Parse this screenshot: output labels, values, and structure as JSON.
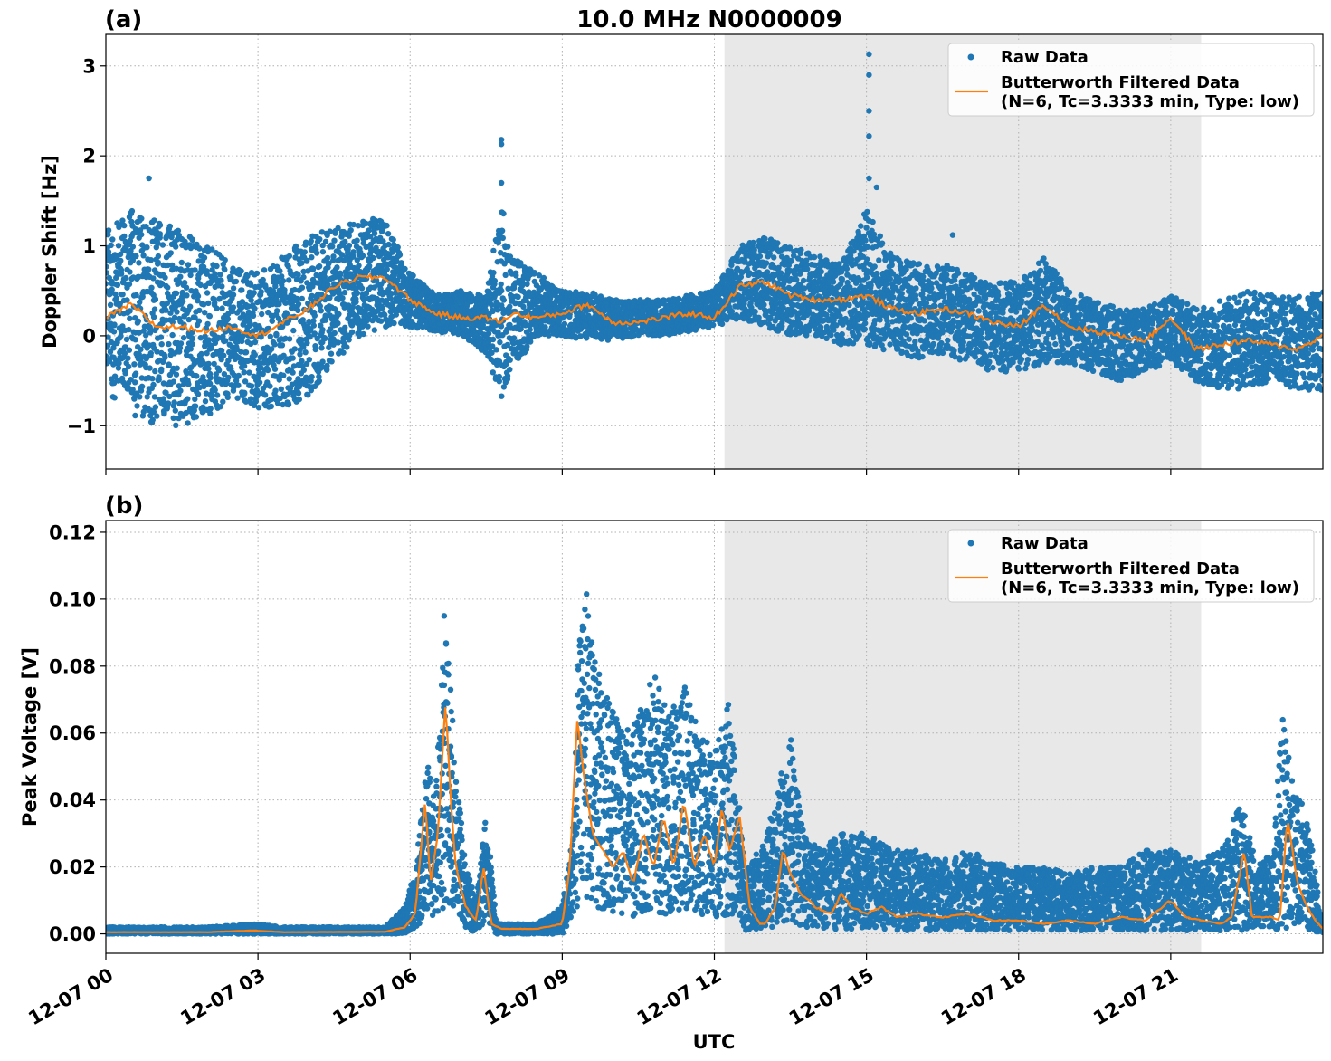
{
  "figure": {
    "title": "10.0 MHz N0000009",
    "xlabel": "UTC",
    "x_tick_labels": [
      "12-07 00",
      "12-07 03",
      "12-07 06",
      "12-07 09",
      "12-07 12",
      "12-07 15",
      "12-07 18",
      "12-07 21"
    ],
    "shaded_region_hours": [
      12.2,
      21.6
    ],
    "shade_color": "#e8e8e8",
    "raw_color": "#1f77b4",
    "filtered_color": "#ff7f0e",
    "legend": {
      "raw": "Raw Data",
      "filtered_line1": "Butterworth Filtered Data",
      "filtered_line2": "(N=6, Tc=3.3333 min, Type: low)"
    }
  },
  "chart_data": [
    {
      "panel_label": "(a)",
      "type": "scatter+line",
      "ylabel": "Doppler Shift [Hz]",
      "xlim_hours": [
        0,
        24
      ],
      "ylim": [
        -1.48,
        3.35
      ],
      "yticks": [
        -1,
        0,
        1,
        2,
        3
      ],
      "ytick_labels": [
        "−1",
        "0",
        "1",
        "2",
        "3"
      ],
      "grid": true,
      "legend_position": "top-right",
      "series": [
        {
          "name": "Raw Data",
          "kind": "scatter",
          "envelope_hours": [
            0,
            0.5,
            1,
            1.5,
            2,
            2.5,
            3,
            3.5,
            4,
            4.5,
            5,
            5.5,
            6,
            6.5,
            7,
            7.5,
            7.8,
            8,
            8.5,
            9,
            9.5,
            10,
            10.5,
            11,
            11.5,
            12,
            12.5,
            13,
            13.5,
            14,
            14.5,
            15,
            15.5,
            16,
            16.5,
            17,
            17.5,
            18,
            18.5,
            19,
            19.5,
            20,
            20.5,
            21,
            21.5,
            22,
            22.5,
            23,
            23.5,
            24
          ],
          "envelope_upper": [
            1.2,
            1.4,
            1.3,
            1.2,
            1.0,
            0.8,
            0.7,
            0.9,
            1.1,
            1.2,
            1.3,
            1.3,
            0.7,
            0.45,
            0.5,
            0.45,
            1.5,
            0.9,
            0.7,
            0.5,
            0.5,
            0.4,
            0.4,
            0.4,
            0.45,
            0.5,
            1.0,
            1.1,
            1.0,
            0.9,
            0.8,
            1.4,
            0.9,
            0.8,
            0.8,
            0.7,
            0.6,
            0.6,
            0.9,
            0.5,
            0.4,
            0.3,
            0.3,
            0.45,
            0.3,
            0.4,
            0.5,
            0.45,
            0.45,
            0.5
          ],
          "envelope_lower": [
            -0.6,
            -0.9,
            -1.0,
            -1.0,
            -0.9,
            -0.7,
            -0.8,
            -0.8,
            -0.7,
            -0.3,
            0.0,
            0.1,
            0.1,
            0.05,
            0.0,
            -0.2,
            -0.7,
            -0.4,
            0.0,
            0.0,
            -0.05,
            -0.05,
            0.0,
            0.0,
            0.05,
            0.1,
            0.2,
            0.1,
            0.0,
            0.0,
            -0.1,
            -0.1,
            -0.2,
            -0.25,
            -0.2,
            -0.3,
            -0.4,
            -0.4,
            -0.3,
            -0.3,
            -0.4,
            -0.5,
            -0.4,
            -0.3,
            -0.5,
            -0.6,
            -0.6,
            -0.5,
            -0.6,
            -0.6
          ],
          "outliers": [
            [
              15.05,
              3.13
            ],
            [
              15.05,
              2.9
            ],
            [
              15.05,
              2.5
            ],
            [
              15.05,
              2.22
            ],
            [
              7.8,
              2.18
            ],
            [
              7.8,
              2.13
            ],
            [
              7.8,
              1.7
            ],
            [
              0.85,
              1.75
            ],
            [
              15.05,
              1.75
            ],
            [
              15.2,
              1.65
            ],
            [
              16.7,
              1.12
            ]
          ]
        },
        {
          "name": "Butterworth Filtered Data",
          "kind": "line",
          "x_hours": [
            0,
            0.5,
            1,
            1.5,
            2,
            2.5,
            3,
            3.5,
            4,
            4.5,
            5,
            5.5,
            6,
            6.5,
            7,
            7.5,
            7.8,
            8,
            8.5,
            9,
            9.5,
            10,
            10.5,
            11,
            11.5,
            12,
            12.5,
            13,
            13.5,
            14,
            14.5,
            15,
            15.5,
            16,
            16.5,
            17,
            17.5,
            18,
            18.5,
            19,
            19.5,
            20,
            20.5,
            21,
            21.5,
            22,
            22.5,
            23,
            23.5,
            24
          ],
          "y": [
            0.2,
            0.35,
            0.1,
            0.1,
            0.05,
            0.1,
            0.0,
            0.15,
            0.3,
            0.55,
            0.65,
            0.65,
            0.4,
            0.25,
            0.2,
            0.2,
            0.15,
            0.25,
            0.2,
            0.25,
            0.35,
            0.15,
            0.15,
            0.2,
            0.25,
            0.2,
            0.55,
            0.6,
            0.45,
            0.4,
            0.4,
            0.45,
            0.3,
            0.25,
            0.3,
            0.25,
            0.15,
            0.1,
            0.35,
            0.1,
            0.05,
            0.0,
            -0.05,
            0.2,
            -0.15,
            -0.1,
            -0.05,
            -0.1,
            -0.15,
            0.0
          ]
        }
      ]
    },
    {
      "panel_label": "(b)",
      "type": "scatter+line",
      "ylabel": "Peak Voltage [V]",
      "xlim_hours": [
        0,
        24
      ],
      "ylim": [
        -0.0058,
        0.1235
      ],
      "yticks": [
        0.0,
        0.02,
        0.04,
        0.06,
        0.08,
        0.1,
        0.12
      ],
      "ytick_labels": [
        "0.00",
        "0.02",
        "0.04",
        "0.06",
        "0.08",
        "0.10",
        "0.12"
      ],
      "grid": true,
      "legend_position": "top-right",
      "series": [
        {
          "name": "Raw Data",
          "kind": "scatter",
          "envelope_hours": [
            0,
            2,
            2.9,
            3.5,
            5.5,
            5.9,
            6.1,
            6.35,
            6.5,
            6.7,
            6.9,
            7.1,
            7.3,
            7.5,
            7.7,
            8.5,
            9.0,
            9.2,
            9.4,
            9.6,
            9.9,
            10.2,
            10.5,
            10.8,
            11.1,
            11.4,
            11.7,
            12.0,
            12.3,
            12.6,
            12.9,
            13.2,
            13.5,
            13.8,
            14.1,
            14.4,
            14.7,
            15.0,
            15.5,
            16.0,
            16.5,
            17.0,
            17.5,
            18.0,
            18.5,
            19.0,
            19.5,
            20.0,
            20.5,
            21.0,
            21.5,
            22.0,
            22.4,
            22.7,
            23.0,
            23.2,
            23.4,
            23.6,
            23.8,
            24.0
          ],
          "envelope_upper": [
            0.002,
            0.002,
            0.003,
            0.002,
            0.002,
            0.008,
            0.02,
            0.052,
            0.04,
            0.109,
            0.05,
            0.02,
            0.01,
            0.038,
            0.003,
            0.003,
            0.008,
            0.03,
            0.117,
            0.085,
            0.07,
            0.06,
            0.065,
            0.079,
            0.065,
            0.075,
            0.06,
            0.055,
            0.07,
            0.02,
            0.025,
            0.04,
            0.06,
            0.03,
            0.025,
            0.03,
            0.03,
            0.03,
            0.025,
            0.025,
            0.022,
            0.025,
            0.022,
            0.02,
            0.02,
            0.018,
            0.02,
            0.02,
            0.025,
            0.025,
            0.022,
            0.025,
            0.04,
            0.02,
            0.025,
            0.066,
            0.045,
            0.04,
            0.025,
            0.002
          ],
          "envelope_lower": [
            0.0,
            0.0,
            0.0,
            0.0,
            0.0,
            0.0,
            0.002,
            0.005,
            0.005,
            0.008,
            0.008,
            0.002,
            0.0,
            0.004,
            0.0,
            0.0,
            0.0,
            0.005,
            0.01,
            0.008,
            0.006,
            0.005,
            0.005,
            0.006,
            0.006,
            0.006,
            0.006,
            0.005,
            0.005,
            0.001,
            0.001,
            0.002,
            0.003,
            0.002,
            0.002,
            0.001,
            0.001,
            0.002,
            0.001,
            0.001,
            0.001,
            0.001,
            0.001,
            0.001,
            0.001,
            0.001,
            0.001,
            0.001,
            0.001,
            0.001,
            0.001,
            0.001,
            0.001,
            0.001,
            0.001,
            0.002,
            0.001,
            0.001,
            0.001,
            0.0
          ]
        },
        {
          "name": "Butterworth Filtered Data",
          "kind": "line",
          "x_hours": [
            0,
            2,
            2.9,
            3.5,
            5.5,
            5.9,
            6.1,
            6.3,
            6.4,
            6.55,
            6.7,
            6.8,
            6.9,
            7.1,
            7.3,
            7.45,
            7.6,
            7.8,
            8.5,
            9.0,
            9.15,
            9.3,
            9.4,
            9.6,
            9.8,
            10.0,
            10.2,
            10.4,
            10.6,
            10.8,
            11.0,
            11.2,
            11.4,
            11.6,
            11.8,
            12.0,
            12.15,
            12.3,
            12.5,
            12.7,
            12.9,
            13.0,
            13.2,
            13.35,
            13.5,
            13.7,
            14.0,
            14.3,
            14.5,
            14.7,
            15.0,
            15.3,
            15.6,
            16.0,
            16.5,
            17.0,
            17.5,
            18.0,
            18.5,
            19.0,
            19.5,
            20.0,
            20.5,
            21.0,
            21.3,
            21.6,
            22.0,
            22.2,
            22.45,
            22.6,
            23.0,
            23.15,
            23.3,
            23.5,
            23.7,
            23.85,
            24.0
          ],
          "y": [
            0.0005,
            0.0005,
            0.001,
            0.0005,
            0.0006,
            0.002,
            0.006,
            0.04,
            0.015,
            0.03,
            0.07,
            0.04,
            0.02,
            0.008,
            0.004,
            0.02,
            0.003,
            0.0015,
            0.0015,
            0.003,
            0.02,
            0.065,
            0.05,
            0.03,
            0.025,
            0.02,
            0.025,
            0.015,
            0.03,
            0.02,
            0.035,
            0.02,
            0.04,
            0.02,
            0.03,
            0.02,
            0.038,
            0.025,
            0.035,
            0.008,
            0.003,
            0.003,
            0.008,
            0.025,
            0.018,
            0.012,
            0.008,
            0.006,
            0.012,
            0.008,
            0.006,
            0.008,
            0.005,
            0.006,
            0.005,
            0.006,
            0.004,
            0.004,
            0.003,
            0.004,
            0.003,
            0.005,
            0.004,
            0.01,
            0.005,
            0.004,
            0.003,
            0.005,
            0.025,
            0.005,
            0.005,
            0.004,
            0.035,
            0.015,
            0.008,
            0.004,
            0.0015
          ]
        }
      ]
    }
  ]
}
